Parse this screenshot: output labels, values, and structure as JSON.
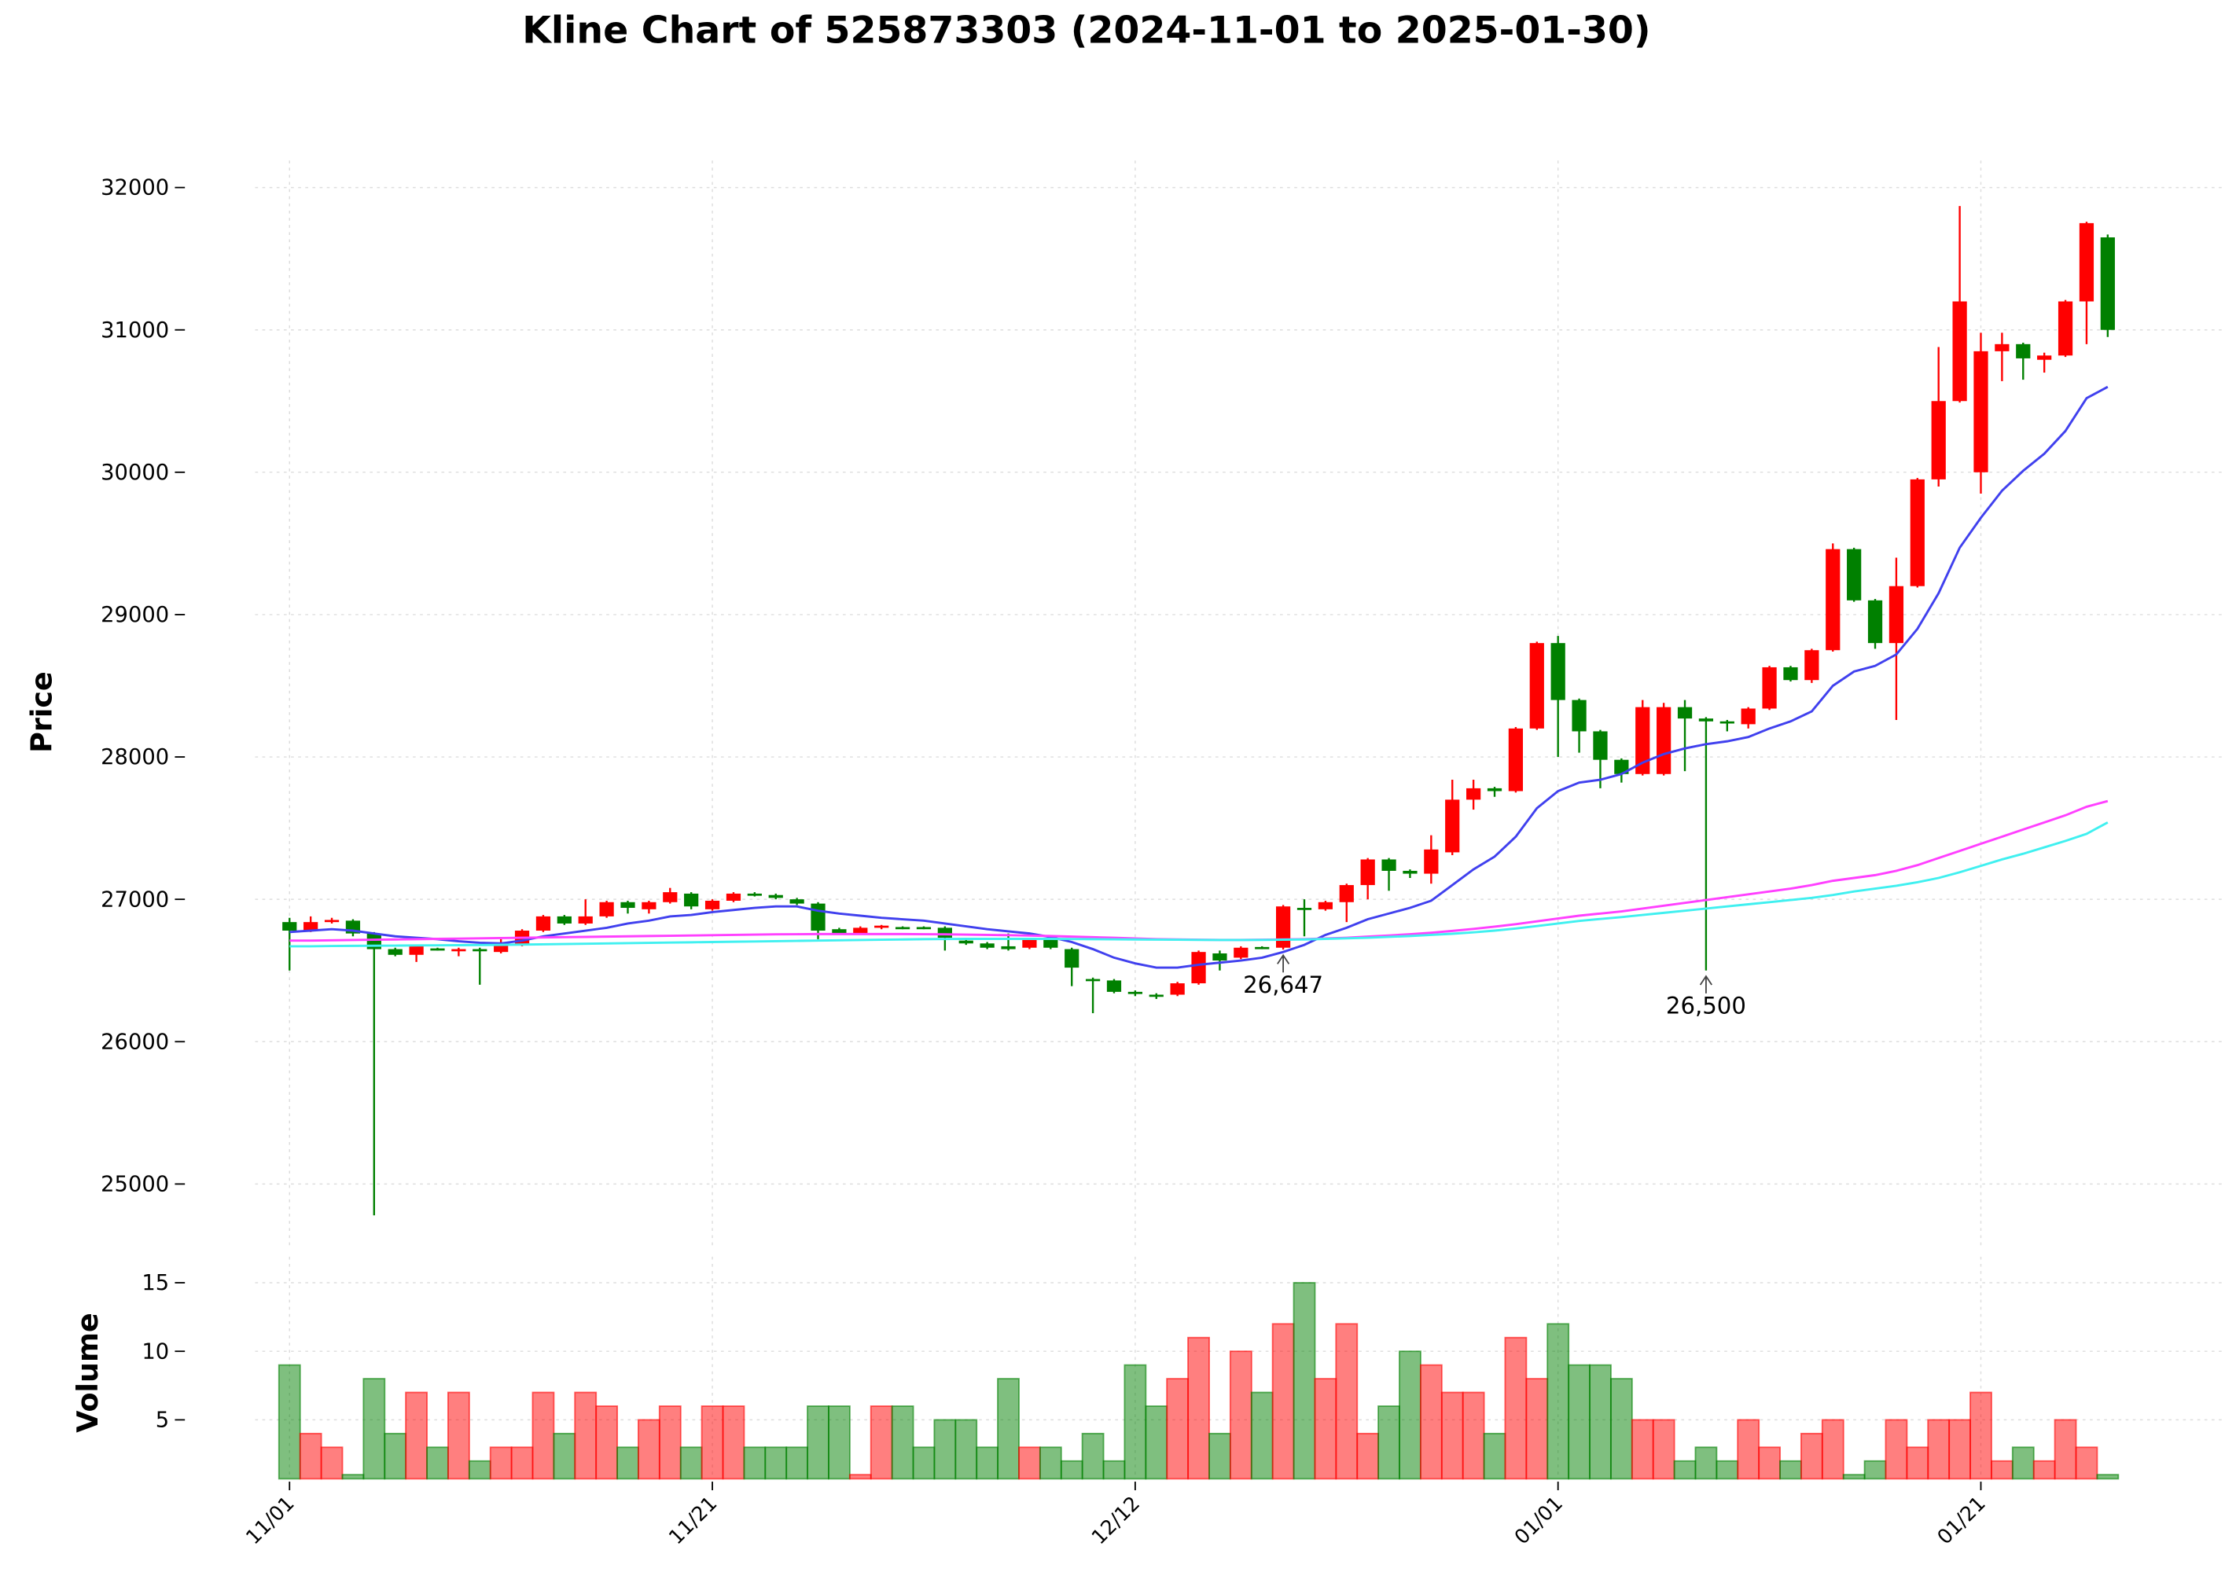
{
  "chart_data": [
    {
      "type": "candlestick",
      "title": "Kline Chart of 525873303 (2024-11-01 to 2025-01-30)",
      "ylabel": "Price",
      "categories": [
        "11/01",
        null,
        null,
        null,
        null,
        null,
        null,
        null,
        null,
        null,
        null,
        null,
        null,
        null,
        null,
        null,
        null,
        null,
        null,
        null,
        "11/21",
        null,
        null,
        null,
        null,
        null,
        null,
        null,
        null,
        null,
        null,
        null,
        null,
        null,
        null,
        null,
        null,
        null,
        null,
        null,
        "12/12",
        null,
        null,
        null,
        null,
        null,
        null,
        null,
        null,
        null,
        null,
        null,
        null,
        null,
        null,
        null,
        null,
        null,
        null,
        null,
        "01/01",
        null,
        null,
        null,
        null,
        null,
        null,
        null,
        null,
        null,
        null,
        null,
        null,
        null,
        null,
        null,
        null,
        null,
        null,
        null,
        "01/21",
        null,
        null,
        null,
        null,
        null,
        null
      ],
      "open": [
        26840,
        26780,
        26840,
        26850,
        26760,
        26650,
        26610,
        26655,
        26640,
        26650,
        26630,
        26680,
        26780,
        26880,
        26830,
        26880,
        26980,
        26930,
        26980,
        27040,
        26930,
        26990,
        27040,
        27030,
        27000,
        26970,
        26790,
        26760,
        26800,
        26805,
        26805,
        26800,
        26710,
        26690,
        26670,
        26660,
        26720,
        26650,
        26440,
        26430,
        26350,
        26330,
        26330,
        26410,
        26620,
        26590,
        26665,
        26660,
        26940,
        26930,
        26980,
        27100,
        27280,
        27200,
        27180,
        27330,
        27700,
        27780,
        27760,
        28200,
        28800,
        28400,
        28180,
        27980,
        27880,
        27880,
        28350,
        28270,
        28250,
        28230,
        28340,
        28630,
        28540,
        28750,
        29460,
        29100,
        28800,
        29200,
        29950,
        30500,
        30000,
        30850,
        30900,
        30790,
        30820,
        31200,
        31650
      ],
      "high": [
        26870,
        26880,
        26870,
        26860,
        26770,
        26660,
        26680,
        26660,
        26660,
        26660,
        26720,
        26790,
        26890,
        26890,
        27000,
        26990,
        26990,
        26990,
        27080,
        27050,
        27000,
        27050,
        27050,
        27040,
        27010,
        26980,
        26800,
        26810,
        26820,
        26810,
        26810,
        26810,
        26720,
        26700,
        26760,
        26730,
        26730,
        26660,
        26450,
        26440,
        26360,
        26340,
        26420,
        26640,
        26640,
        26670,
        26670,
        26960,
        27000,
        26990,
        27110,
        27290,
        27290,
        27210,
        27450,
        27840,
        27840,
        27790,
        28210,
        28810,
        28850,
        28410,
        28190,
        27990,
        28400,
        28380,
        28400,
        28280,
        28260,
        28350,
        28640,
        28640,
        28760,
        29500,
        29470,
        29110,
        29400,
        29960,
        30880,
        31870,
        30980,
        30980,
        30910,
        30840,
        31210,
        31760,
        31670
      ],
      "low": [
        26500,
        26770,
        26830,
        26740,
        24780,
        26600,
        26560,
        26640,
        26600,
        26400,
        26620,
        26670,
        26770,
        26820,
        26820,
        26870,
        26900,
        26900,
        26970,
        26930,
        26920,
        26980,
        27020,
        27000,
        26960,
        26720,
        26750,
        26750,
        26790,
        26790,
        26790,
        26640,
        26680,
        26650,
        26640,
        26650,
        26650,
        26390,
        26200,
        26340,
        26320,
        26300,
        26320,
        26400,
        26500,
        26580,
        26650,
        26647,
        26740,
        26920,
        26840,
        27000,
        27060,
        27150,
        27110,
        27310,
        27630,
        27720,
        27750,
        28190,
        28000,
        28030,
        27780,
        27820,
        27870,
        27870,
        27900,
        26500,
        28180,
        28200,
        28330,
        28530,
        28520,
        28740,
        29090,
        28760,
        28260,
        29190,
        29900,
        30490,
        29850,
        30640,
        30650,
        30700,
        30810,
        30900,
        30950
      ],
      "close": [
        26780,
        26840,
        26855,
        26760,
        26650,
        26610,
        26670,
        26650,
        26650,
        26640,
        26680,
        26780,
        26880,
        26830,
        26880,
        26980,
        26940,
        26980,
        27050,
        26950,
        26990,
        27040,
        27030,
        27010,
        26970,
        26780,
        26760,
        26800,
        26815,
        26795,
        26798,
        26730,
        26690,
        26660,
        26650,
        26720,
        26660,
        26520,
        26430,
        26350,
        26335,
        26320,
        26410,
        26630,
        26570,
        26660,
        26660,
        26950,
        26930,
        26980,
        27100,
        27280,
        27200,
        27180,
        27350,
        27700,
        27780,
        27760,
        28200,
        28800,
        28400,
        28180,
        27980,
        27880,
        28350,
        28350,
        28270,
        28250,
        28240,
        28340,
        28630,
        28540,
        28750,
        29460,
        29100,
        28800,
        29200,
        29950,
        30500,
        31200,
        30850,
        30900,
        30800,
        30820,
        31200,
        31750,
        31000
      ],
      "up_color": "#ff0000",
      "down_color": "#008000",
      "lines": [
        {
          "color": "#4040ee",
          "values": [
            26770,
            26780,
            26790,
            26780,
            26760,
            26740,
            26730,
            26720,
            26705,
            26695,
            26690,
            26710,
            26740,
            26760,
            26780,
            26800,
            26830,
            26850,
            26880,
            26890,
            26910,
            26925,
            26940,
            26950,
            26950,
            26920,
            26900,
            26885,
            26870,
            26860,
            26850,
            26830,
            26810,
            26790,
            26775,
            26760,
            26735,
            26700,
            26650,
            26590,
            26550,
            26520,
            26520,
            26540,
            26555,
            26570,
            26590,
            26630,
            26680,
            26750,
            26800,
            26860,
            26900,
            26940,
            26990,
            27100,
            27210,
            27300,
            27440,
            27640,
            27760,
            27820,
            27840,
            27880,
            27960,
            28020,
            28060,
            28090,
            28110,
            28140,
            28200,
            28250,
            28320,
            28500,
            28600,
            28640,
            28720,
            28900,
            29150,
            29470,
            29680,
            29870,
            30010,
            30130,
            30290,
            30520,
            30600
          ]
        },
        {
          "color": "#ff40ff",
          "values": [
            26710,
            26710,
            26712,
            26714,
            26716,
            26718,
            26720,
            26722,
            26724,
            26726,
            26728,
            26730,
            26732,
            26734,
            26736,
            26738,
            26740,
            26742,
            26744,
            26746,
            26748,
            26750,
            26752,
            26754,
            26755,
            26756,
            26756,
            26756,
            26756,
            26756,
            26755,
            26754,
            26752,
            26750,
            26748,
            26745,
            26742,
            26738,
            26734,
            26730,
            26725,
            26720,
            26718,
            26716,
            26715,
            26715,
            26716,
            26718,
            26720,
            26725,
            26730,
            26738,
            26746,
            26755,
            26765,
            26778,
            26792,
            26808,
            26825,
            26845,
            26865,
            26885,
            26900,
            26915,
            26935,
            26955,
            26975,
            26995,
            27015,
            27035,
            27055,
            27075,
            27100,
            27130,
            27150,
            27170,
            27200,
            27240,
            27290,
            27340,
            27390,
            27440,
            27490,
            27540,
            27590,
            27650,
            27690
          ]
        },
        {
          "color": "#40f0f0",
          "values": [
            26670,
            26670,
            26672,
            26673,
            26674,
            26675,
            26676,
            26677,
            26678,
            26679,
            26680,
            26682,
            26684,
            26686,
            26688,
            26690,
            26692,
            26694,
            26696,
            26698,
            26700,
            26702,
            26704,
            26706,
            26708,
            26710,
            26712,
            26714,
            26716,
            26718,
            26720,
            26721,
            26722,
            26722,
            26722,
            26722,
            26722,
            26721,
            26720,
            26719,
            26718,
            26717,
            26716,
            26715,
            26714,
            26714,
            26715,
            26716,
            26718,
            26722,
            26726,
            26730,
            26736,
            26742,
            26750,
            26758,
            26768,
            26780,
            26795,
            26812,
            26830,
            26848,
            26862,
            26875,
            26890,
            26905,
            26920,
            26935,
            26950,
            26965,
            26980,
            26995,
            27010,
            27030,
            27055,
            27075,
            27095,
            27120,
            27150,
            27190,
            27235,
            27280,
            27320,
            27365,
            27410,
            27460,
            27540
          ]
        }
      ],
      "annotations": [
        {
          "index": 47,
          "value": 26647,
          "label": "26,647"
        },
        {
          "index": 67,
          "value": 26500,
          "label": "26,500"
        }
      ],
      "ylim": [
        24560,
        32190
      ],
      "yticks": [
        25000,
        26000,
        27000,
        28000,
        29000,
        30000,
        31000,
        32000
      ],
      "grid": true
    },
    {
      "type": "bar",
      "ylabel": "Volume",
      "values": [
        9,
        4,
        3,
        1,
        8,
        4,
        7,
        3,
        7,
        2,
        3,
        3,
        7,
        4,
        7,
        6,
        3,
        5,
        6,
        3,
        6,
        6,
        3,
        3,
        3,
        6,
        6,
        1,
        6,
        6,
        3,
        5,
        5,
        3,
        8,
        3,
        3,
        2,
        4,
        2,
        9,
        6,
        8,
        11,
        4,
        10,
        7,
        12,
        15,
        8,
        12,
        4,
        6,
        10,
        9,
        7,
        7,
        4,
        11,
        8,
        12,
        9,
        9,
        8,
        5,
        5,
        2,
        3,
        2,
        5,
        3,
        2,
        4,
        5,
        1,
        2,
        5,
        3,
        5,
        5,
        7,
        2,
        3,
        2,
        5,
        3,
        1
      ],
      "ylim": [
        0.7,
        16.9
      ],
      "yticks": [
        5,
        10,
        15
      ],
      "grid": true
    }
  ]
}
